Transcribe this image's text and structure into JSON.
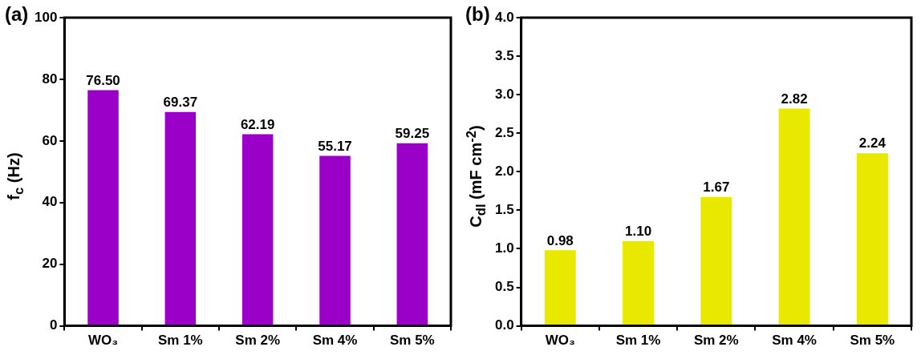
{
  "chart_data": [
    {
      "type": "bar",
      "annotations": [
        "(a)"
      ],
      "ylabel": "f$_{c}$ (Hz)",
      "categories": [
        "WO₃",
        "Sm 1%",
        "Sm 2%",
        "Sm 4%",
        "Sm 5%"
      ],
      "values": [
        76.5,
        69.37,
        62.19,
        55.17,
        59.25
      ],
      "value_labels": [
        "76.50",
        "69.37",
        "62.19",
        "55.17",
        "59.25"
      ],
      "color": "#9a00c8",
      "ylim": [
        0,
        100
      ],
      "yticks": [
        0,
        20,
        40,
        60,
        80,
        100
      ],
      "grid": false,
      "legend": false
    },
    {
      "type": "bar",
      "annotations": [
        "(b)"
      ],
      "ylabel": "C$_{dl}$ (mF cm$^{-2}$)",
      "categories": [
        "WO₃",
        "Sm 1%",
        "Sm 2%",
        "Sm 4%",
        "Sm 5%"
      ],
      "values": [
        0.98,
        1.1,
        1.67,
        2.82,
        2.24
      ],
      "value_labels": [
        "0.98",
        "1.10",
        "1.67",
        "2.82",
        "2.24"
      ],
      "color": "#e8e800",
      "ylim": [
        0,
        4
      ],
      "yticks": [
        {
          "value": 0,
          "label": "0.0"
        },
        {
          "value": 0.5,
          "label": "0.5"
        },
        {
          "value": 1,
          "label": "1.0"
        },
        {
          "value": 1.5,
          "label": "1.5"
        },
        {
          "value": 2,
          "label": "2.0"
        },
        {
          "value": 2.5,
          "label": "2.5"
        },
        {
          "value": 3,
          "label": "3.0"
        },
        {
          "value": 3.5,
          "label": "3.5"
        },
        {
          "value": 4,
          "label": "4.0"
        }
      ],
      "grid": false,
      "legend": false
    }
  ]
}
